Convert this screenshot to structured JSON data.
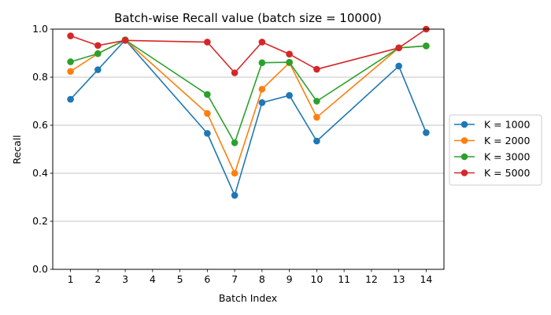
{
  "chart_data": {
    "type": "line",
    "title": "Batch-wise Recall value (batch size = 10000)",
    "xlabel": "Batch Index",
    "ylabel": "Recall",
    "x_ticks": [
      1,
      2,
      3,
      4,
      5,
      6,
      7,
      8,
      9,
      10,
      11,
      12,
      13,
      14
    ],
    "y_ticks": [
      "0.0",
      "0.2",
      "0.4",
      "0.6",
      "0.8",
      "1.0"
    ],
    "xlim": [
      0.35,
      14.65
    ],
    "ylim": [
      0,
      1.0
    ],
    "grid": "horizontal",
    "legend_position": "right",
    "x": [
      1,
      2,
      3,
      6,
      7,
      8,
      9,
      10,
      13,
      14
    ],
    "series": [
      {
        "name": "K = 1000",
        "color": "#1f77b4",
        "values": [
          0.708,
          0.831,
          0.955,
          0.566,
          0.308,
          0.694,
          0.724,
          0.534,
          0.846,
          0.569
        ]
      },
      {
        "name": "K = 2000",
        "color": "#ff7f0e",
        "values": [
          0.824,
          0.898,
          0.955,
          0.649,
          0.4,
          0.75,
          0.86,
          0.633,
          0.922,
          0.93
        ]
      },
      {
        "name": "K = 3000",
        "color": "#2ca02c",
        "values": [
          0.864,
          0.898,
          0.955,
          0.728,
          0.527,
          0.86,
          0.862,
          0.7,
          0.922,
          0.93
        ]
      },
      {
        "name": "K = 5000",
        "color": "#d62728",
        "values": [
          0.972,
          0.932,
          0.953,
          0.946,
          0.818,
          0.946,
          0.896,
          0.833,
          0.922,
          1.0
        ]
      }
    ]
  }
}
